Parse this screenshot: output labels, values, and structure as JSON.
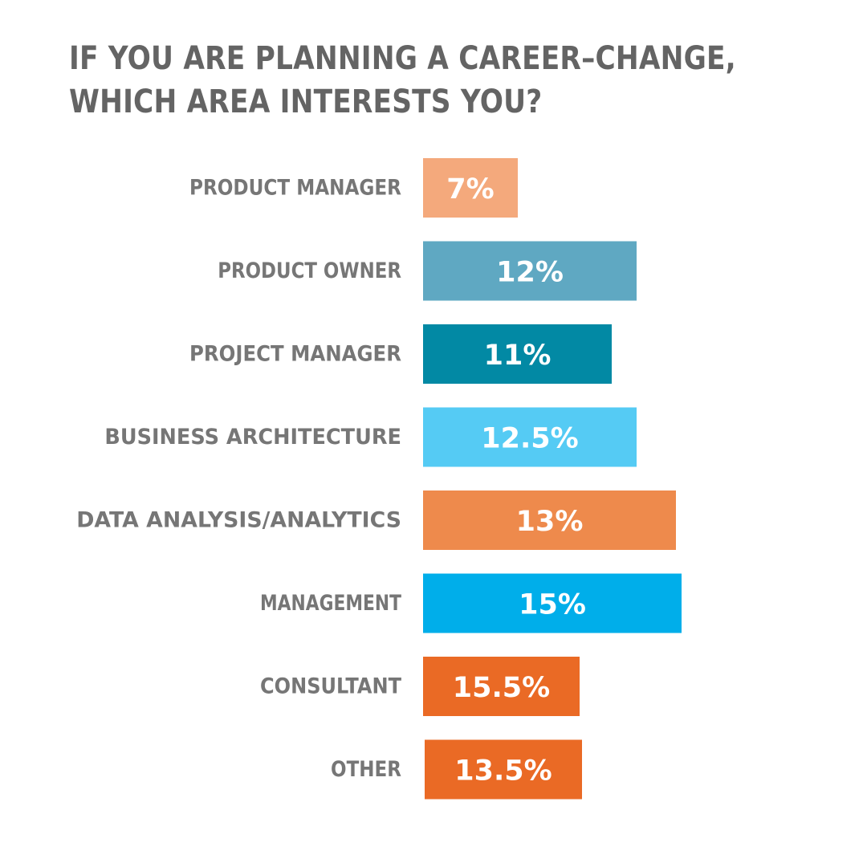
{
  "chart_data": {
    "type": "bar",
    "orientation": "horizontal",
    "title": "IF YOU ARE PLANNING A CAREER–CHANGE, WHICH AREA INTERESTS YOU?",
    "title_lines": [
      "IF YOU ARE PLANNING A CAREER–CHANGE,",
      "WHICH AREA INTERESTS YOU?"
    ],
    "categories": [
      "PRODUCT MANAGER",
      "PRODUCT OWNER",
      "PROJECT MANAGER",
      "BUSINESS ARCHITECTURE",
      "DATA ANALYSIS/ANALYTICS",
      "MANAGEMENT",
      "CONSULTANT",
      "OTHER"
    ],
    "values": [
      7,
      12,
      11,
      12.5,
      13,
      15,
      15.5,
      13.5
    ],
    "value_labels": [
      "7%",
      "12%",
      "11%",
      "12.5%",
      "13%",
      "15%",
      "15.5%",
      "13.5%"
    ],
    "colors": [
      "#F4A97C",
      "#5FA8C2",
      "#0289A4",
      "#55CBF4",
      "#EE8A4C",
      "#00AEEA",
      "#EA6A25",
      "#EA6A25"
    ],
    "xlabel": "",
    "ylabel": "",
    "grid": false,
    "legend": "none"
  }
}
